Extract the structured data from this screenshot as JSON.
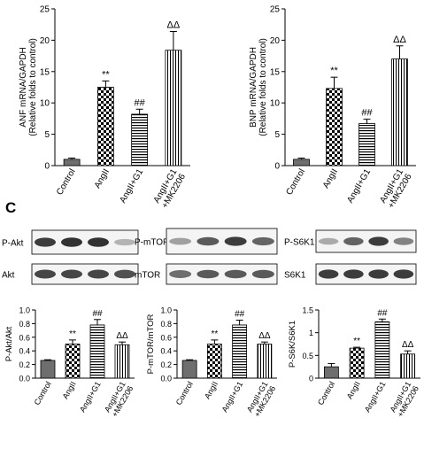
{
  "panel_label": "C",
  "chart_data": [
    {
      "type": "bar",
      "ylabel": [
        "ANF mRNA/GAPDH",
        "(Relative folds to control)"
      ],
      "ylim": [
        0,
        25
      ],
      "yticks": [
        "0",
        "5",
        "10",
        "15",
        "20",
        "25"
      ],
      "categories": [
        "Control",
        "AngII",
        "AngII+G1",
        "AngII+G1 +MK2206"
      ],
      "values": [
        1.0,
        12.5,
        8.2,
        18.4
      ],
      "errors": [
        0.2,
        1.0,
        0.8,
        3.0
      ],
      "annotations": [
        "",
        "**",
        "##",
        "ΔΔ"
      ],
      "patterns": [
        "gray",
        "checker",
        "hstripe",
        "vstripe"
      ]
    },
    {
      "type": "bar",
      "ylabel": [
        "BNP mRNA/GAPDH",
        "(Relative folds to control)"
      ],
      "ylim": [
        0,
        25
      ],
      "yticks": [
        "0",
        "5",
        "10",
        "15",
        "20",
        "25"
      ],
      "categories": [
        "Control",
        "AngII",
        "AngII+G1",
        "AngII+G1 +MK2206"
      ],
      "values": [
        1.0,
        12.3,
        6.7,
        17.0
      ],
      "errors": [
        0.2,
        1.8,
        0.7,
        2.1
      ],
      "annotations": [
        "",
        "**",
        "##",
        "ΔΔ"
      ],
      "patterns": [
        "gray",
        "checker",
        "hstripe",
        "vstripe"
      ]
    },
    {
      "type": "bar",
      "ylabel": [
        "P-Akt/Akt"
      ],
      "ylim": [
        0,
        1.0
      ],
      "yticks": [
        "0.0",
        "0.2",
        "0.4",
        "0.6",
        "0.8",
        "1.0"
      ],
      "categories": [
        "Control",
        "AngII",
        "AngII+G1",
        "AngII+G1 +MK2206"
      ],
      "values": [
        0.26,
        0.5,
        0.78,
        0.49
      ],
      "errors": [
        0.01,
        0.06,
        0.08,
        0.04
      ],
      "annotations": [
        "",
        "**",
        "##",
        "ΔΔ"
      ],
      "patterns": [
        "gray",
        "checker",
        "hstripe",
        "vstripe"
      ]
    },
    {
      "type": "bar",
      "ylabel": [
        "P-mTOR/mTOR"
      ],
      "ylim": [
        0,
        1.0
      ],
      "yticks": [
        "0.0",
        "0.2",
        "0.4",
        "0.6",
        "0.8",
        "1.0"
      ],
      "categories": [
        "Control",
        "AngII",
        "AngII+G1",
        "AngII+G1 +MK2206"
      ],
      "values": [
        0.26,
        0.5,
        0.78,
        0.5
      ],
      "errors": [
        0.01,
        0.06,
        0.07,
        0.03
      ],
      "annotations": [
        "",
        "**",
        "##",
        "ΔΔ"
      ],
      "patterns": [
        "gray",
        "checker",
        "hstripe",
        "vstripe"
      ]
    },
    {
      "type": "bar",
      "ylabel": [
        "P-S6K/S6K1"
      ],
      "ylim": [
        0,
        1.5
      ],
      "yticks": [
        "0",
        "0.5",
        "1",
        "1.5"
      ],
      "categories": [
        "Control",
        "AngII",
        "AngII+G1",
        "AngII+G1 +MK2206"
      ],
      "values": [
        0.25,
        0.66,
        1.24,
        0.53
      ],
      "errors": [
        0.07,
        0.02,
        0.06,
        0.07
      ],
      "annotations": [
        "",
        "**",
        "##",
        "ΔΔ"
      ],
      "patterns": [
        "gray",
        "checker",
        "hstripe",
        "vstripe"
      ]
    }
  ],
  "blots": [
    {
      "label": "P-Akt",
      "bands": [
        0.85,
        0.9,
        0.9,
        0.25
      ]
    },
    {
      "label": "Akt",
      "bands": [
        0.8,
        0.8,
        0.8,
        0.75
      ]
    },
    {
      "label": "P-mTOR",
      "bands": [
        0.35,
        0.7,
        0.85,
        0.65
      ]
    },
    {
      "label": "mTOR",
      "bands": [
        0.6,
        0.7,
        0.7,
        0.7
      ]
    },
    {
      "label": "P-S6K1",
      "bands": [
        0.3,
        0.65,
        0.85,
        0.5
      ]
    },
    {
      "label": "S6K1",
      "bands": [
        0.85,
        0.85,
        0.85,
        0.85
      ]
    }
  ]
}
